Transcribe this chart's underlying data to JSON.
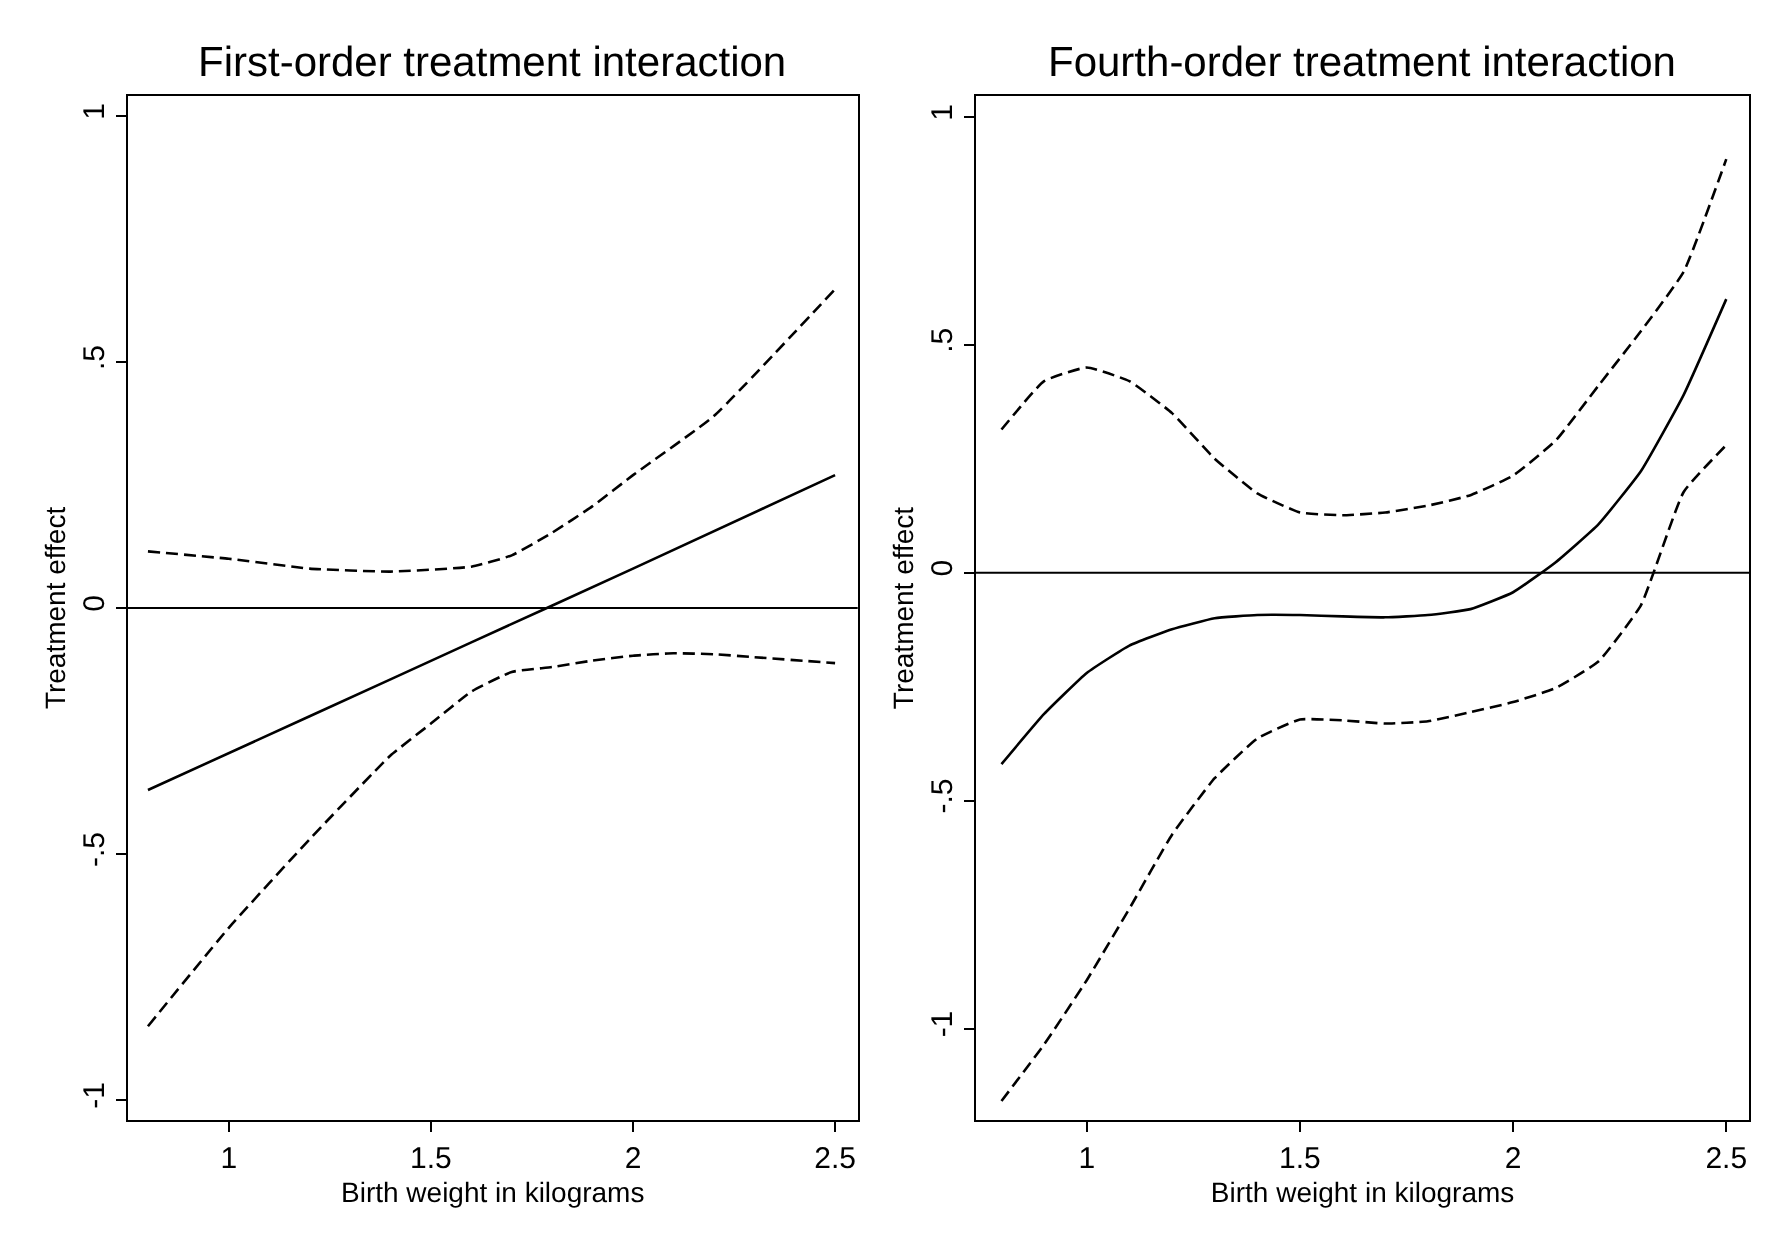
{
  "chart_data": [
    {
      "type": "line",
      "title": "First-order treatment interaction",
      "xlabel": "Birth weight in kilograms",
      "ylabel": "Treatment effect",
      "xlim": [
        0.75,
        2.556
      ],
      "xticks": [
        1,
        1.5,
        2,
        2.5
      ],
      "ylim": [
        -1.04,
        1.04
      ],
      "yticks": [
        {
          "value": -1,
          "label": "-1"
        },
        {
          "value": -0.5,
          "label": "-.5"
        },
        0,
        {
          "value": 0.5,
          "label": ".5"
        },
        1
      ],
      "ref_lines": [
        {
          "axis": "y",
          "value": 0,
          "color": "#000000"
        }
      ],
      "series": [
        {
          "color": "#000000",
          "line_style": "solid",
          "x": [
            0.8,
            1.2,
            1.6,
            2.0,
            2.5
          ],
          "values": [
            -0.37,
            -0.22,
            -0.07,
            0.08,
            0.27
          ]
        },
        {
          "color": "#000000",
          "line_style": "dashed",
          "x": [
            0.8,
            1.0,
            1.2,
            1.4,
            1.6,
            1.7,
            1.8,
            1.9,
            2.0,
            2.2,
            2.5
          ],
          "values": [
            0.115,
            0.1,
            0.08,
            0.074,
            0.084,
            0.107,
            0.153,
            0.207,
            0.27,
            0.39,
            0.648
          ]
        },
        {
          "color": "#000000",
          "line_style": "dashed",
          "x": [
            0.8,
            1.0,
            1.2,
            1.4,
            1.5,
            1.6,
            1.7,
            1.8,
            1.9,
            2.0,
            2.1,
            2.2,
            2.3,
            2.5
          ],
          "values": [
            -0.85,
            -0.65,
            -0.47,
            -0.3,
            -0.235,
            -0.17,
            -0.13,
            -0.12,
            -0.107,
            -0.097,
            -0.092,
            -0.094,
            -0.1,
            -0.112
          ]
        }
      ]
    },
    {
      "type": "line",
      "title": "Fourth-order treatment interaction",
      "xlabel": "Birth weight in kilograms",
      "ylabel": "Treatment effect",
      "xlim": [
        0.74,
        2.554
      ],
      "xticks": [
        1,
        1.5,
        2,
        2.5
      ],
      "ylim": [
        -1.2,
        1.045
      ],
      "yticks": [
        {
          "value": -1,
          "label": "-1"
        },
        {
          "value": -0.5,
          "label": "-.5"
        },
        0,
        {
          "value": 0.5,
          "label": ".5"
        },
        1
      ],
      "ref_lines": [
        {
          "axis": "y",
          "value": 0,
          "color": "#000000"
        }
      ],
      "series": [
        {
          "color": "#000000",
          "line_style": "solid",
          "x": [
            0.8,
            0.9,
            1.0,
            1.1,
            1.2,
            1.3,
            1.4,
            1.5,
            1.6,
            1.7,
            1.8,
            1.9,
            2.0,
            2.1,
            2.2,
            2.3,
            2.4,
            2.5
          ],
          "values": [
            -0.42,
            -0.31,
            -0.22,
            -0.16,
            -0.124,
            -0.1,
            -0.093,
            -0.093,
            -0.096,
            -0.098,
            -0.093,
            -0.08,
            -0.043,
            0.023,
            0.106,
            0.223,
            0.39,
            0.6
          ]
        },
        {
          "color": "#000000",
          "line_style": "dashed",
          "x": [
            0.8,
            0.9,
            1.0,
            1.1,
            1.2,
            1.3,
            1.4,
            1.5,
            1.6,
            1.7,
            1.8,
            1.9,
            2.0,
            2.1,
            2.2,
            2.3,
            2.4,
            2.5
          ],
          "values": [
            0.314,
            0.42,
            0.45,
            0.42,
            0.35,
            0.25,
            0.174,
            0.132,
            0.126,
            0.132,
            0.147,
            0.17,
            0.213,
            0.29,
            0.41,
            0.53,
            0.66,
            0.907
          ]
        },
        {
          "color": "#000000",
          "line_style": "dashed",
          "x": [
            0.8,
            0.9,
            1.0,
            1.1,
            1.2,
            1.3,
            1.4,
            1.5,
            1.6,
            1.7,
            1.8,
            1.9,
            2.0,
            2.1,
            2.2,
            2.3,
            2.4,
            2.5
          ],
          "values": [
            -1.159,
            -1.035,
            -0.894,
            -0.737,
            -0.575,
            -0.451,
            -0.364,
            -0.322,
            -0.324,
            -0.331,
            -0.326,
            -0.306,
            -0.284,
            -0.253,
            -0.195,
            -0.071,
            0.177,
            0.28
          ]
        }
      ]
    }
  ]
}
